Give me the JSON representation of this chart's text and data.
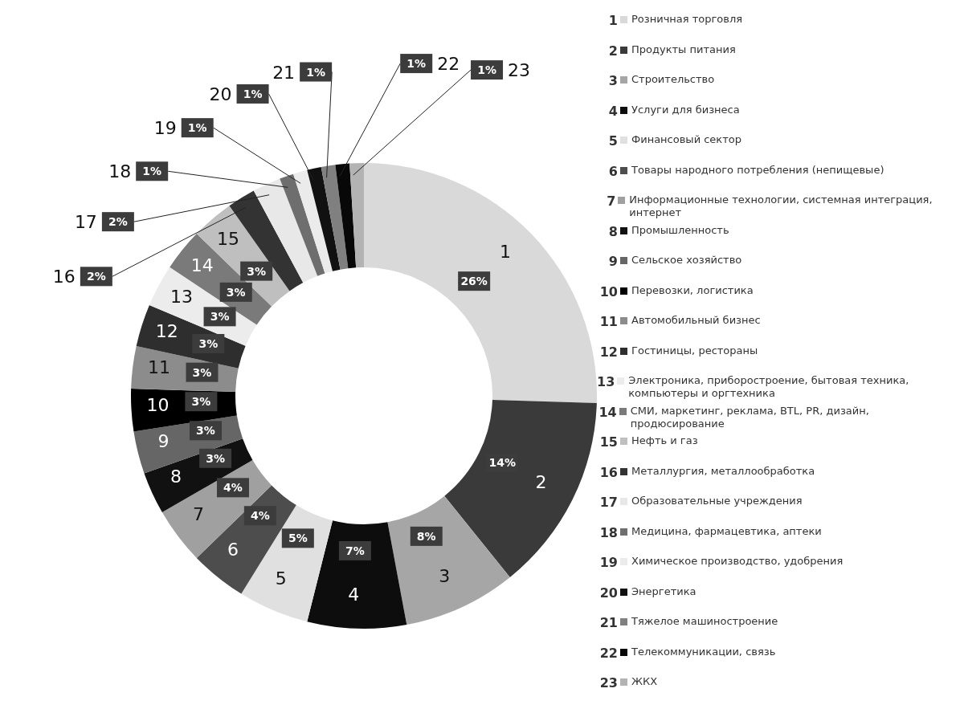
{
  "chart_data": {
    "type": "donut",
    "categories": [
      "Розничная торговля",
      "Продукты питания",
      "Строительство",
      "Услуги для бизнеса",
      "Финансовый сектор",
      "Товары народного потребления (непищевые)",
      "Информационные технологии, системная интеграция, интернет",
      "Промышленность",
      "Сельское хозяйство",
      "Перевозки, логистика",
      "Автомобильный бизнес",
      "Гостиницы, рестораны",
      "Электроника, приборостроение, бытовая техника, компьютеры и оргтехника",
      "СМИ, маркетинг, реклама, BTL, PR, дизайн, продюсирование",
      "Нефть и газ",
      "Металлургия, металлообработка",
      "Образовательные учреждения",
      "Медицина, фармацевтика, аптеки",
      "Химическое производство, удобрения",
      "Энергетика",
      "Тяжелое машиностроение",
      "Телекоммуникации, связь",
      "ЖКХ"
    ],
    "values": [
      26,
      14,
      8,
      7,
      5,
      4,
      4,
      3,
      3,
      3,
      3,
      3,
      3,
      3,
      3,
      2,
      2,
      1,
      1,
      1,
      1,
      1,
      1
    ],
    "value_labels": [
      "26%",
      "14%",
      "8%",
      "7%",
      "5%",
      "4%",
      "4%",
      "3%",
      "3%",
      "3%",
      "3%",
      "3%",
      "3%",
      "3%",
      "3%",
      "2%",
      "2%",
      "1%",
      "1%",
      "1%",
      "1%",
      "1%",
      "1%"
    ],
    "colors": [
      "#d9d9d9",
      "#3a3a3a",
      "#a6a6a6",
      "#0d0d0d",
      "#e0e0e0",
      "#4d4d4d",
      "#a0a0a0",
      "#111111",
      "#666666",
      "#000000",
      "#8c8c8c",
      "#2e2e2e",
      "#ececec",
      "#7a7a7a",
      "#bfbfbf",
      "#333333",
      "#e8e8e8",
      "#6e6e6e",
      "#ebebeb",
      "#111111",
      "#808080",
      "#080808",
      "#b3b3b3"
    ],
    "annotations": [
      {
        "text": "1",
        "x": "Розничная торговля"
      },
      {
        "text": "2",
        "x": "Продукты питания"
      },
      {
        "text": "3",
        "x": "Строительство"
      },
      {
        "text": "4",
        "x": "Услуги для бизнеса"
      },
      {
        "text": "5",
        "x": "Финансовый сектор"
      },
      {
        "text": "6",
        "x": "Товары народного потребления (непищевые)"
      },
      {
        "text": "7",
        "x": "Информационные технологии, системная интеграция, интернет"
      },
      {
        "text": "8",
        "x": "Промышленность"
      },
      {
        "text": "9",
        "x": "Сельское хозяйство"
      },
      {
        "text": "10",
        "x": "Перевозки, логистика"
      },
      {
        "text": "11",
        "x": "Автомобильный бизнес"
      },
      {
        "text": "12",
        "x": "Гостиницы, рестораны"
      },
      {
        "text": "13",
        "x": "Электроника, приборостроение, бытовая техника, компьютеры и оргтехника"
      },
      {
        "text": "14",
        "x": "СМИ, маркетинг, реклама, BTL, PR, дизайн, продюсирование"
      },
      {
        "text": "15",
        "x": "Нефть и газ"
      },
      {
        "text": "16",
        "x": "Металлургия, металлообработка"
      },
      {
        "text": "17",
        "x": "Образовательные учреждения"
      },
      {
        "text": "18",
        "x": "Медицина, фармацевтика, аптеки"
      },
      {
        "text": "19",
        "x": "Химическое производство, удобрения"
      },
      {
        "text": "20",
        "x": "Энергетика"
      },
      {
        "text": "21",
        "x": "Тяжелое машиностроение"
      },
      {
        "text": "22",
        "x": "Телекоммуникации, связь"
      },
      {
        "text": "23",
        "x": "ЖКХ"
      }
    ],
    "legend": "right"
  }
}
